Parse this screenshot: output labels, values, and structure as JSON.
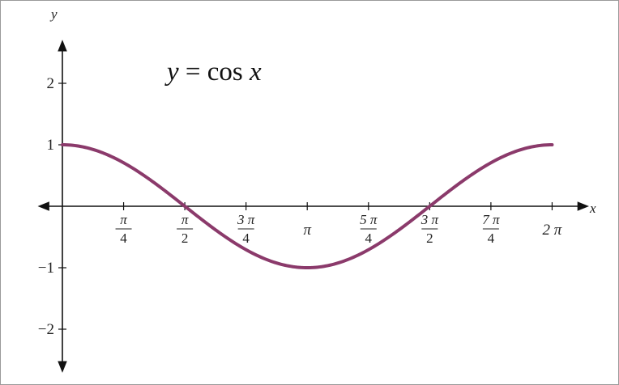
{
  "chart_data": {
    "type": "line",
    "title": "y = cos x",
    "title_parts": {
      "y": "y",
      "eq": " = cos ",
      "x": "x"
    },
    "xlabel": "x",
    "ylabel": "y",
    "xlim": [
      -0.35,
      6.79
    ],
    "ylim": [
      -2.75,
      2.75
    ],
    "grid": false,
    "curve_color": "#8b3a6b",
    "axis_color": "#111111",
    "x_ticks": [
      {
        "value": 0.785398,
        "num": "π",
        "den": "4"
      },
      {
        "value": 1.570796,
        "num": "π",
        "den": "2"
      },
      {
        "value": 2.356194,
        "num": "3 π",
        "den": "4"
      },
      {
        "value": 3.141593,
        "label": "π"
      },
      {
        "value": 3.926991,
        "num": "5 π",
        "den": "4"
      },
      {
        "value": 4.712389,
        "num": "3 π",
        "den": "2"
      },
      {
        "value": 5.497787,
        "num": "7 π",
        "den": "4"
      },
      {
        "value": 6.283185,
        "label": "2 π"
      }
    ],
    "y_ticks": [
      {
        "value": 2,
        "label": "2"
      },
      {
        "value": 1,
        "label": "1"
      },
      {
        "value": -1,
        "label": "−1"
      },
      {
        "value": -2,
        "label": "−2"
      }
    ],
    "series": [
      {
        "x": [
          0,
          0.392699,
          0.785398,
          1.178097,
          1.570796,
          1.963495,
          2.356194,
          2.748894,
          3.141593,
          3.534292,
          3.926991,
          4.31969,
          4.712389,
          5.105088,
          5.497787,
          5.890486,
          6.283185
        ],
        "y": [
          1,
          0.9239,
          0.7071,
          0.3827,
          0,
          -0.3827,
          -0.7071,
          -0.9239,
          -1,
          -0.9239,
          -0.7071,
          -0.3827,
          0,
          0.3827,
          0.7071,
          0.9239,
          1
        ]
      }
    ]
  }
}
